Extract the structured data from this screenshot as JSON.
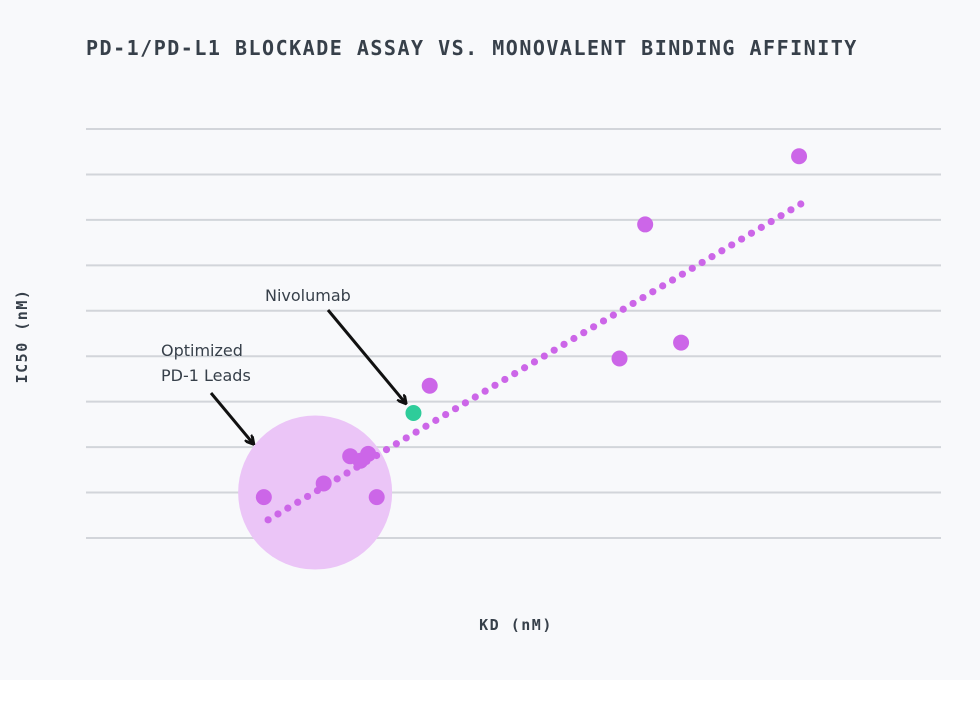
{
  "chart_data": {
    "type": "scatter",
    "title": "PD-1/PD-L1 BLOCKADE ASSAY VS. MONOVALENT BINDING AFFINITY",
    "xlabel": "KD (nM)",
    "ylabel": "IC50 (nM)",
    "xlim": [
      0,
      100
    ],
    "ylim": [
      0,
      9
    ],
    "grid": true,
    "gridlines_y": [
      0,
      1,
      2,
      3,
      4,
      5,
      6,
      7,
      8,
      9
    ],
    "series": [
      {
        "name": "PD-1 leads",
        "color": "#cc66e8",
        "points": [
          {
            "x": 20.8,
            "y": 0.9
          },
          {
            "x": 27.8,
            "y": 1.2
          },
          {
            "x": 30.9,
            "y": 1.8
          },
          {
            "x": 32.1,
            "y": 1.7
          },
          {
            "x": 33.0,
            "y": 1.85
          },
          {
            "x": 34.0,
            "y": 0.9
          },
          {
            "x": 40.2,
            "y": 3.35
          },
          {
            "x": 62.4,
            "y": 3.95
          },
          {
            "x": 65.4,
            "y": 6.9
          },
          {
            "x": 69.6,
            "y": 4.3
          },
          {
            "x": 83.4,
            "y": 8.4
          }
        ]
      },
      {
        "name": "Nivolumab",
        "color": "#2ecc9a",
        "points": [
          {
            "x": 38.3,
            "y": 2.75
          }
        ]
      }
    ],
    "trendline": {
      "x": [
        21.3,
        83.6
      ],
      "y": [
        0.4,
        7.35
      ],
      "color": "#cc66e8",
      "style": "dotted"
    },
    "highlight_region": {
      "label": "Optimized PD-1 Leads",
      "cx": 26.8,
      "cy": 1.0,
      "color": "#ebc5f7"
    },
    "annotations": [
      {
        "id": "nivolumab",
        "text_lines": [
          "Nivolumab"
        ],
        "target": {
          "x": 38.3,
          "y": 2.75
        }
      },
      {
        "id": "leads",
        "text_lines": [
          "Optimized",
          "PD-1 Leads"
        ],
        "target": "highlight_region"
      }
    ]
  }
}
